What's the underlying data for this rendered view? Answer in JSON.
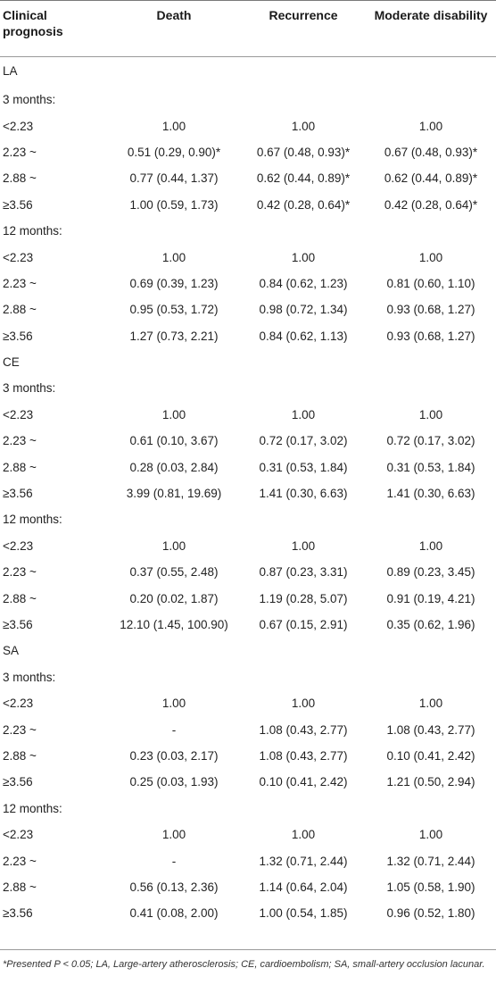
{
  "table": {
    "headers": [
      "Clinical prognosis",
      "Death",
      "Recurrence",
      "Moderate disability"
    ],
    "rows": [
      {
        "kind": "section",
        "label": "LA"
      },
      {
        "kind": "period",
        "label": "3 months:"
      },
      {
        "kind": "data",
        "label": "<2.23",
        "death": "1.00",
        "recurrence": "1.00",
        "disability": "1.00"
      },
      {
        "kind": "data",
        "label": "2.23 ~",
        "death": "0.51 (0.29, 0.90)*",
        "recurrence": "0.67 (0.48, 0.93)*",
        "disability": "0.67 (0.48, 0.93)*"
      },
      {
        "kind": "data",
        "label": "2.88 ~",
        "death": "0.77 (0.44, 1.37)",
        "recurrence": "0.62 (0.44, 0.89)*",
        "disability": "0.62 (0.44, 0.89)*"
      },
      {
        "kind": "data",
        "label": "≥3.56",
        "death": "1.00 (0.59, 1.73)",
        "recurrence": "0.42 (0.28, 0.64)*",
        "disability": "0.42 (0.28, 0.64)*"
      },
      {
        "kind": "period",
        "label": "12 months:"
      },
      {
        "kind": "data",
        "label": "<2.23",
        "death": "1.00",
        "recurrence": "1.00",
        "disability": "1.00"
      },
      {
        "kind": "data",
        "label": "2.23 ~",
        "death": "0.69 (0.39, 1.23)",
        "recurrence": "0.84 (0.62, 1.23)",
        "disability": "0.81 (0.60, 1.10)"
      },
      {
        "kind": "data",
        "label": "2.88 ~",
        "death": "0.95 (0.53, 1.72)",
        "recurrence": "0.98 (0.72, 1.34)",
        "disability": "0.93 (0.68, 1.27)"
      },
      {
        "kind": "data",
        "label": "≥3.56",
        "death": "1.27 (0.73, 2.21)",
        "recurrence": "0.84 (0.62, 1.13)",
        "disability": "0.93 (0.68, 1.27)"
      },
      {
        "kind": "section",
        "label": "CE"
      },
      {
        "kind": "period",
        "label": "3 months:"
      },
      {
        "kind": "data",
        "label": "<2.23",
        "death": "1.00",
        "recurrence": "1.00",
        "disability": "1.00"
      },
      {
        "kind": "data",
        "label": "2.23 ~",
        "death": "0.61 (0.10, 3.67)",
        "recurrence": "0.72 (0.17, 3.02)",
        "disability": "0.72 (0.17, 3.02)"
      },
      {
        "kind": "data",
        "label": "2.88 ~",
        "death": "0.28 (0.03, 2.84)",
        "recurrence": "0.31 (0.53, 1.84)",
        "disability": "0.31 (0.53, 1.84)"
      },
      {
        "kind": "data",
        "label": "≥3.56",
        "death": "3.99 (0.81, 19.69)",
        "recurrence": "1.41 (0.30, 6.63)",
        "disability": "1.41 (0.30, 6.63)"
      },
      {
        "kind": "period",
        "label": "12 months:"
      },
      {
        "kind": "data",
        "label": "<2.23",
        "death": "1.00",
        "recurrence": "1.00",
        "disability": "1.00"
      },
      {
        "kind": "data",
        "label": "2.23 ~",
        "death": "0.37 (0.55, 2.48)",
        "recurrence": "0.87 (0.23, 3.31)",
        "disability": "0.89 (0.23, 3.45)"
      },
      {
        "kind": "data",
        "label": "2.88 ~",
        "death": "0.20 (0.02, 1.87)",
        "recurrence": "1.19 (0.28, 5.07)",
        "disability": "0.91 (0.19, 4.21)"
      },
      {
        "kind": "data",
        "label": "≥3.56",
        "death": "12.10 (1.45, 100.90)",
        "recurrence": "0.67 (0.15, 2.91)",
        "disability": "0.35 (0.62, 1.96)"
      },
      {
        "kind": "section",
        "label": "SA"
      },
      {
        "kind": "period",
        "label": "3 months:"
      },
      {
        "kind": "data",
        "label": "<2.23",
        "death": "1.00",
        "recurrence": "1.00",
        "disability": "1.00"
      },
      {
        "kind": "data",
        "label": "2.23 ~",
        "death": "-",
        "recurrence": "1.08 (0.43, 2.77)",
        "disability": "1.08 (0.43, 2.77)"
      },
      {
        "kind": "data",
        "label": "2.88 ~",
        "death": "0.23 (0.03, 2.17)",
        "recurrence": "1.08 (0.43, 2.77)",
        "disability": "0.10 (0.41, 2.42)"
      },
      {
        "kind": "data",
        "label": "≥3.56",
        "death": "0.25 (0.03, 1.93)",
        "recurrence": "0.10 (0.41, 2.42)",
        "disability": "1.21 (0.50, 2.94)"
      },
      {
        "kind": "period",
        "label": "12 months:"
      },
      {
        "kind": "data",
        "label": "<2.23",
        "death": "1.00",
        "recurrence": "1.00",
        "disability": "1.00"
      },
      {
        "kind": "data",
        "label": "2.23 ~",
        "death": "-",
        "recurrence": "1.32 (0.71, 2.44)",
        "disability": "1.32 (0.71, 2.44)"
      },
      {
        "kind": "data",
        "label": "2.88 ~",
        "death": "0.56 (0.13, 2.36)",
        "recurrence": "1.14 (0.64, 2.04)",
        "disability": "1.05 (0.58, 1.90)"
      },
      {
        "kind": "data",
        "label": "≥3.56",
        "death": "0.41 (0.08, 2.00)",
        "recurrence": "1.00 (0.54, 1.85)",
        "disability": "0.96 (0.52, 1.80)"
      }
    ]
  },
  "footnote": "*Presented P < 0.05; LA, Large-artery atherosclerosis; CE, cardioembolism; SA, small-artery occlusion lacunar."
}
